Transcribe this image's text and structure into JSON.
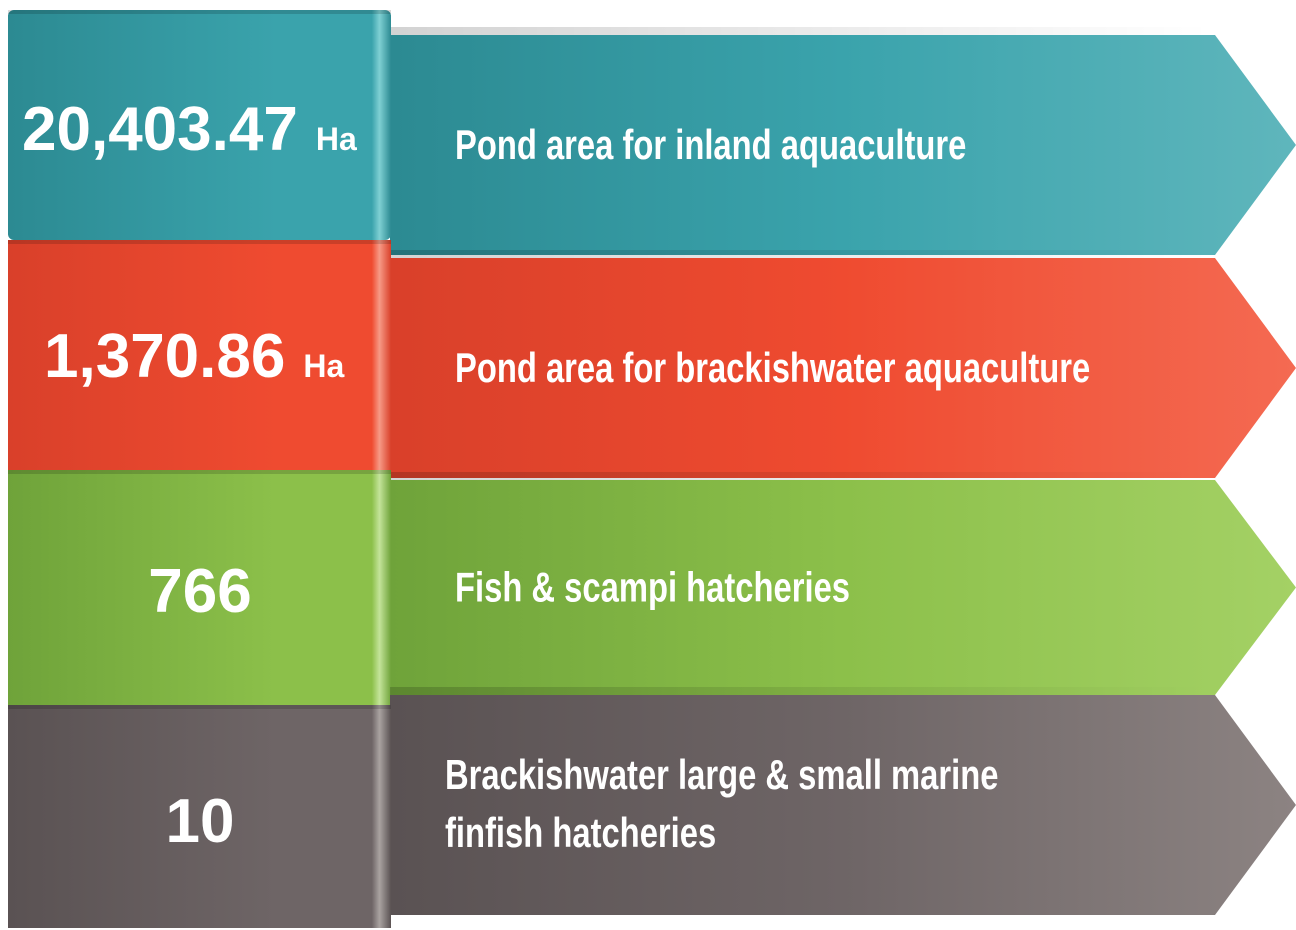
{
  "items": [
    {
      "value": "20,403.47",
      "unit": "Ha",
      "label_lines": [
        "Pond area for inland aquaculture"
      ]
    },
    {
      "value": "1,370.86",
      "unit": "Ha",
      "label_lines": [
        "Pond area for brackishwater aquaculture"
      ]
    },
    {
      "value": "766",
      "label_lines": [
        "Fish & scampi hatcheries"
      ]
    },
    {
      "value": "10",
      "label_lines": [
        "Brackishwater large & small marine",
        "finfish hatcheries"
      ]
    }
  ]
}
